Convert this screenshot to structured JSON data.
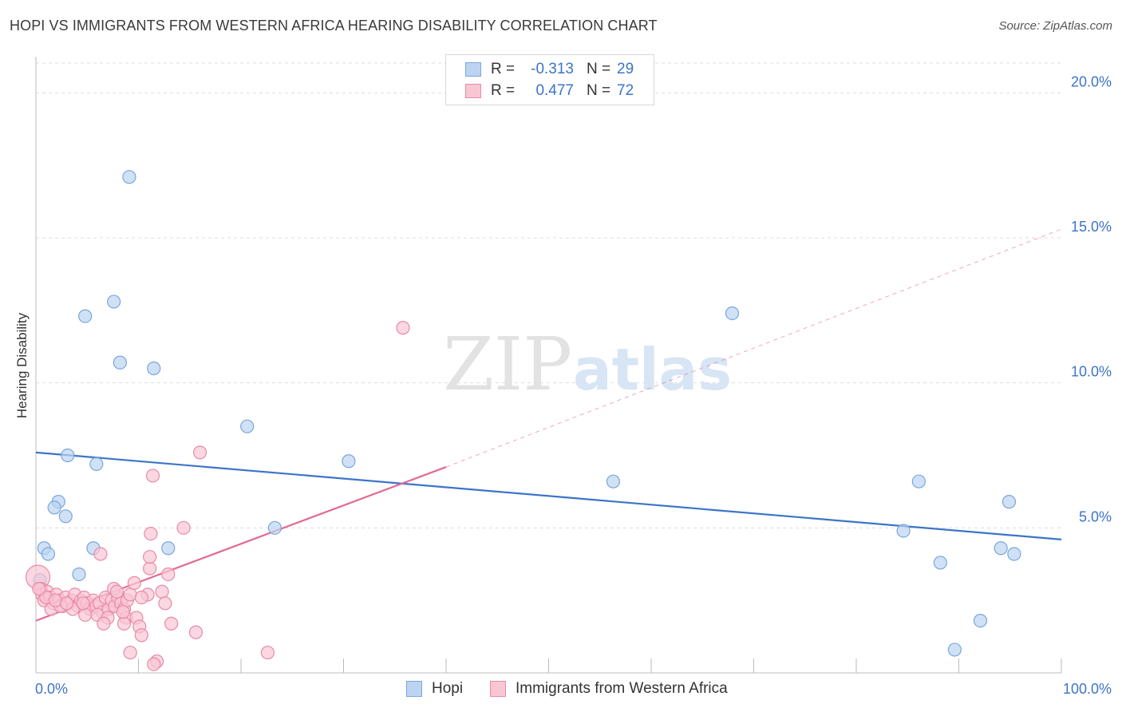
{
  "title": "HOPI VS IMMIGRANTS FROM WESTERN AFRICA HEARING DISABILITY CORRELATION CHART",
  "source": "Source: ZipAtlas.com",
  "watermark": {
    "zip": "ZIP",
    "atlas": "atlas"
  },
  "legend": {
    "hopi": {
      "r_label": "R =",
      "r_value": "-0.313",
      "n_label": "N =",
      "n_value": "29"
    },
    "wafrica": {
      "r_label": "R =",
      "r_value": "0.477",
      "n_label": "N =",
      "n_value": "72"
    }
  },
  "bottom_legend": {
    "hopi": "Hopi",
    "wafrica": "Immigrants from Western Africa"
  },
  "colors": {
    "hopi_fill": "#bcd4f2",
    "hopi_stroke": "#7aa6dc",
    "hopi_line": "#3d74c8",
    "wafrica_fill": "#f9c6d4",
    "wafrica_stroke": "#e88aa8",
    "wafrica_line": "#e26a94",
    "tick_label": "#3d74c8",
    "grid": "#dddddd"
  },
  "chart_data": {
    "type": "scatter",
    "title": "HOPI VS IMMIGRANTS FROM WESTERN AFRICA HEARING DISABILITY CORRELATION CHART",
    "xlabel": "",
    "ylabel": "Hearing Disability",
    "xlim": [
      0,
      100
    ],
    "ylim": [
      0,
      21
    ],
    "x_tick_labels": [
      "0.0%",
      "100.0%"
    ],
    "y_ticks": [
      5,
      10,
      15,
      20
    ],
    "y_tick_labels": [
      "5.0%",
      "10.0%",
      "15.0%",
      "20.0%"
    ],
    "grid": true,
    "series": [
      {
        "name": "Hopi",
        "r": -0.313,
        "n": 29,
        "points": [
          [
            9.1,
            17.1
          ],
          [
            7.6,
            12.8
          ],
          [
            4.8,
            12.3
          ],
          [
            8.2,
            10.7
          ],
          [
            11.5,
            10.5
          ],
          [
            20.6,
            8.5
          ],
          [
            3.1,
            7.5
          ],
          [
            5.9,
            7.2
          ],
          [
            30.5,
            7.3
          ],
          [
            2.2,
            5.9
          ],
          [
            1.8,
            5.7
          ],
          [
            2.9,
            5.4
          ],
          [
            23.3,
            5.0
          ],
          [
            0.8,
            4.3
          ],
          [
            1.2,
            4.1
          ],
          [
            5.6,
            4.3
          ],
          [
            12.9,
            4.3
          ],
          [
            4.2,
            3.4
          ],
          [
            0.4,
            3.2
          ],
          [
            56.3,
            6.6
          ],
          [
            67.9,
            12.4
          ],
          [
            86.1,
            6.6
          ],
          [
            84.6,
            4.9
          ],
          [
            88.2,
            3.8
          ],
          [
            94.9,
            5.9
          ],
          [
            94.1,
            4.3
          ],
          [
            95.4,
            4.1
          ],
          [
            92.1,
            1.8
          ],
          [
            89.6,
            0.8
          ]
        ],
        "trend": {
          "x": [
            0,
            100
          ],
          "y": [
            7.6,
            4.6
          ],
          "style": "solid"
        }
      },
      {
        "name": "Immigrants from Western Africa",
        "r": 0.477,
        "n": 72,
        "points": [
          [
            0.2,
            3.3
          ],
          [
            0.5,
            2.9
          ],
          [
            0.6,
            2.7
          ],
          [
            0.8,
            2.5
          ],
          [
            1.1,
            2.8
          ],
          [
            1.4,
            2.6
          ],
          [
            1.7,
            2.4
          ],
          [
            2.0,
            2.7
          ],
          [
            2.3,
            2.5
          ],
          [
            2.6,
            2.3
          ],
          [
            2.9,
            2.6
          ],
          [
            3.2,
            2.4
          ],
          [
            3.5,
            2.5
          ],
          [
            3.8,
            2.7
          ],
          [
            4.1,
            2.3
          ],
          [
            4.4,
            2.5
          ],
          [
            4.7,
            2.6
          ],
          [
            5.0,
            2.4
          ],
          [
            5.3,
            2.2
          ],
          [
            5.6,
            2.5
          ],
          [
            5.9,
            2.3
          ],
          [
            6.2,
            2.4
          ],
          [
            6.5,
            2.1
          ],
          [
            6.8,
            2.6
          ],
          [
            7.1,
            2.2
          ],
          [
            7.4,
            2.5
          ],
          [
            7.7,
            2.3
          ],
          [
            8.0,
            2.6
          ],
          [
            8.3,
            2.4
          ],
          [
            8.6,
            2.2
          ],
          [
            8.9,
            2.5
          ],
          [
            9.2,
            2.7
          ],
          [
            1.5,
            2.2
          ],
          [
            2.4,
            2.3
          ],
          [
            3.6,
            2.2
          ],
          [
            4.8,
            2.0
          ],
          [
            6.0,
            2.0
          ],
          [
            7.0,
            1.9
          ],
          [
            8.8,
            1.9
          ],
          [
            9.8,
            1.9
          ],
          [
            7.6,
            2.9
          ],
          [
            9.6,
            3.1
          ],
          [
            10.9,
            2.7
          ],
          [
            12.3,
            2.8
          ],
          [
            12.6,
            2.4
          ],
          [
            10.3,
            2.6
          ],
          [
            12.9,
            3.4
          ],
          [
            11.1,
            3.6
          ],
          [
            11.1,
            4.0
          ],
          [
            6.3,
            4.1
          ],
          [
            11.2,
            4.8
          ],
          [
            14.4,
            5.0
          ],
          [
            11.4,
            6.8
          ],
          [
            16.0,
            7.6
          ],
          [
            35.8,
            11.9
          ],
          [
            6.6,
            1.7
          ],
          [
            8.6,
            1.7
          ],
          [
            10.1,
            1.6
          ],
          [
            13.2,
            1.7
          ],
          [
            15.6,
            1.4
          ],
          [
            10.3,
            1.3
          ],
          [
            9.2,
            0.7
          ],
          [
            11.8,
            0.4
          ],
          [
            11.5,
            0.3
          ],
          [
            22.6,
            0.7
          ],
          [
            1.0,
            2.6
          ],
          [
            1.9,
            2.5
          ],
          [
            3.0,
            2.4
          ],
          [
            4.6,
            2.4
          ],
          [
            7.9,
            2.8
          ],
          [
            8.5,
            2.1
          ],
          [
            0.3,
            2.9
          ]
        ],
        "trend": {
          "x": [
            0,
            40
          ],
          "y": [
            1.8,
            7.1
          ],
          "style": "solid",
          "extended_to": {
            "x": 100,
            "y": 15.3,
            "style": "dashed"
          }
        }
      }
    ]
  }
}
